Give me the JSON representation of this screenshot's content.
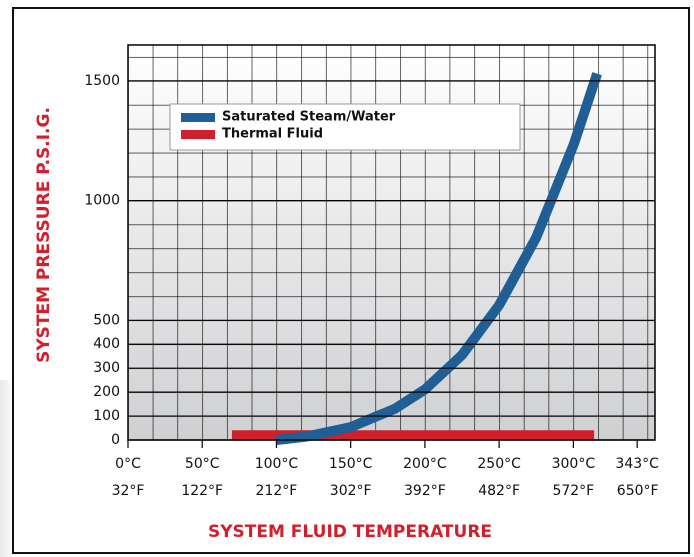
{
  "chart_data": {
    "type": "line",
    "x_label": "SYSTEM FLUID TEMPERATURE",
    "y_label": "SYSTEM PRESSURE P.S.I.G.",
    "xlim": [
      0,
      355
    ],
    "xticks": [
      {
        "value": 0,
        "label": "0°C"
      },
      {
        "value": 50,
        "label": "50°C"
      },
      {
        "value": 100,
        "label": "100°C"
      },
      {
        "value": 150,
        "label": "150°C"
      },
      {
        "value": 200,
        "label": "200°C"
      },
      {
        "value": 250,
        "label": "250°C"
      },
      {
        "value": 300,
        "label": "300°C"
      },
      {
        "value": 343,
        "label": "343°C"
      }
    ],
    "x2lim": [
      32,
      671
    ],
    "x2ticks": [
      {
        "value": 32,
        "label": "32°F"
      },
      {
        "value": 122,
        "label": "122°F"
      },
      {
        "value": 212,
        "label": "212°F"
      },
      {
        "value": 302,
        "label": "302°F"
      },
      {
        "value": 392,
        "label": "392°F"
      },
      {
        "value": 482,
        "label": "482°F"
      },
      {
        "value": 572,
        "label": "572°F"
      },
      {
        "value": 650,
        "label": "650°F"
      }
    ],
    "ylim": [
      0,
      1650
    ],
    "yticks": [
      0,
      100,
      200,
      300,
      400,
      500,
      1000,
      1500
    ],
    "grid": true,
    "legend": "upper left",
    "series": [
      {
        "name": "Saturated Steam/Water",
        "color": "#1f5f96",
        "x": [
          100,
          120,
          150,
          180,
          200,
          225,
          250,
          275,
          300,
          310,
          316
        ],
        "values": [
          0,
          14,
          54,
          131,
          211,
          355,
          563,
          846,
          1231,
          1417,
          1530
        ]
      },
      {
        "name": "Thermal Fluid",
        "color": "#d0202e",
        "x": [
          70,
          314
        ],
        "values": [
          20,
          20
        ]
      }
    ]
  }
}
